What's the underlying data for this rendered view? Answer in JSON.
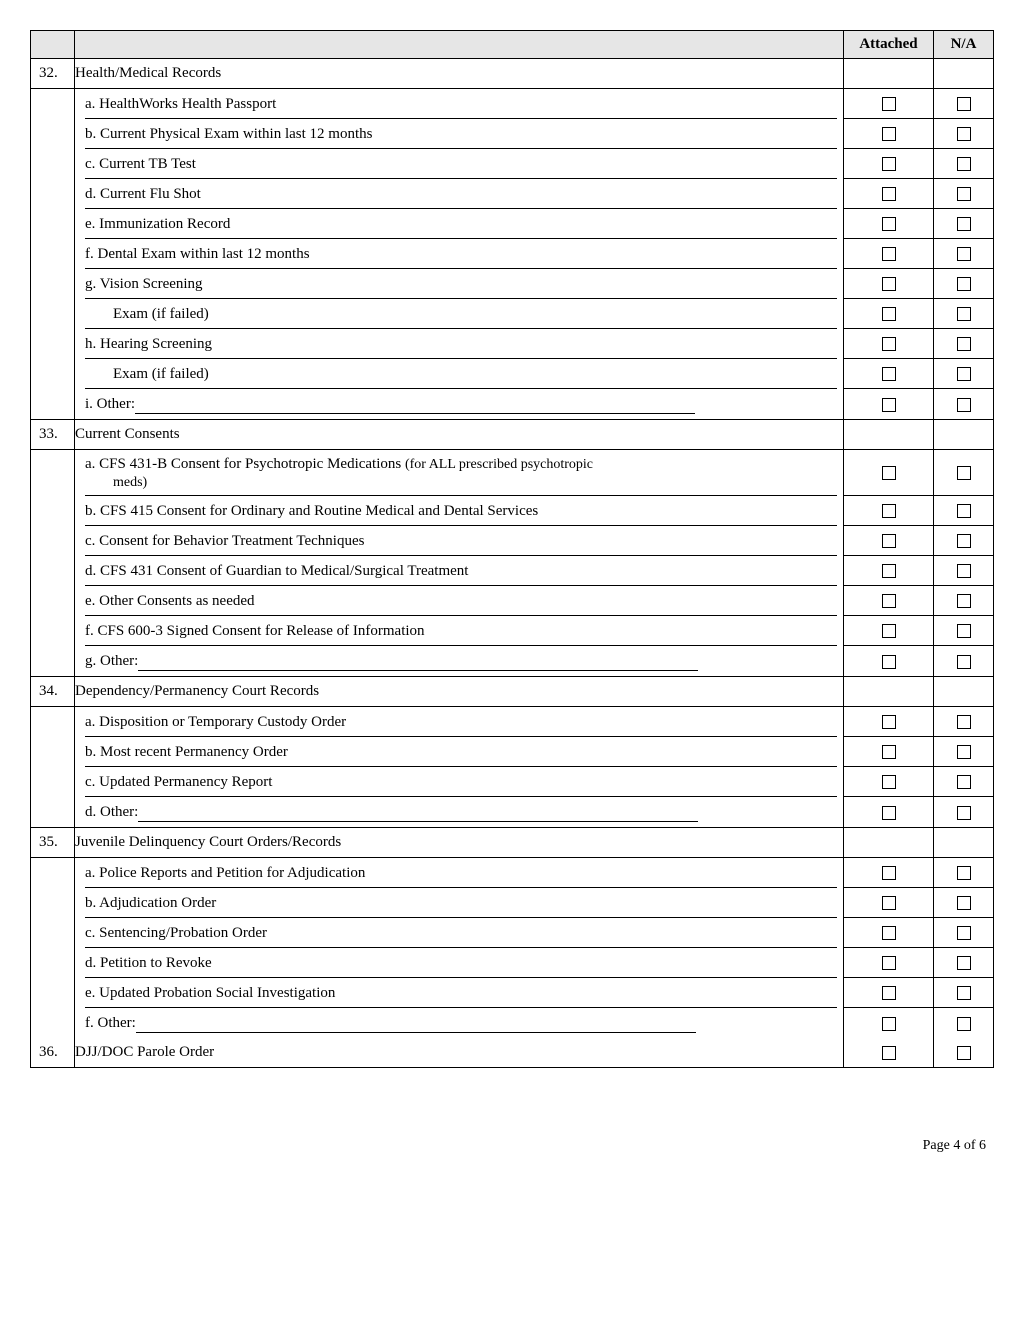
{
  "header": {
    "attached": "Attached",
    "na": "N/A"
  },
  "footer": "Page 4 of 6",
  "sections": [
    {
      "num": "32.",
      "title": "Health/Medical Records",
      "items": [
        {
          "label": "a. HealthWorks Health Passport",
          "u": "partial"
        },
        {
          "label": "b. Current Physical Exam within last 12 months",
          "u": "partial"
        },
        {
          "label": "c. Current TB Test",
          "u": "partial"
        },
        {
          "label": "d. Current Flu Shot",
          "u": "partial"
        },
        {
          "label": "e. Immunization Record",
          "u": "partial"
        },
        {
          "label": "f. Dental Exam within last 12 months",
          "u": "partial"
        },
        {
          "label": "g. Vision Screening",
          "u": "partial"
        },
        {
          "label": "Exam (if failed)",
          "u": "partial",
          "indent": true
        },
        {
          "label": "h. Hearing Screening",
          "u": "partial"
        },
        {
          "label": "Exam (if failed)",
          "u": "partial",
          "indent": true
        },
        {
          "label": "i. Other:",
          "other": true
        }
      ]
    },
    {
      "num": "33.",
      "title": "Current Consents",
      "items": [
        {
          "label": "a. CFS 431-B Consent for Psychotropic Medications  ",
          "tail": "(for ALL prescribed psychotropic",
          "hang": "meds)",
          "tall": true
        },
        {
          "label": "b. CFS 415 Consent for Ordinary and Routine Medical and Dental Services"
        },
        {
          "label": "c. Consent for Behavior Treatment Techniques"
        },
        {
          "label": "d. CFS 431 Consent of Guardian to Medical/Surgical Treatment"
        },
        {
          "label": "e. Other Consents as needed"
        },
        {
          "label": "f. CFS 600-3 Signed Consent for Release of Information"
        },
        {
          "label": "g. Other:",
          "other": true
        }
      ]
    },
    {
      "num": "34.",
      "title": "Dependency/Permanency Court Records",
      "items": [
        {
          "label": "a. Disposition or Temporary Custody Order",
          "u": "partial"
        },
        {
          "label": "b. Most recent Permanency Order"
        },
        {
          "label": "c. Updated Permanency Report"
        },
        {
          "label": "d. Other:",
          "other": true
        }
      ]
    },
    {
      "num": "35.",
      "title": "Juvenile Delinquency Court Orders/Records",
      "items": [
        {
          "label": "a. Police Reports and Petition for Adjudication"
        },
        {
          "label": "b. Adjudication Order"
        },
        {
          "label": "c. Sentencing/Probation Order"
        },
        {
          "label": "d. Petition to Revoke"
        },
        {
          "label": "e. Updated Probation Social Investigation"
        },
        {
          "label": "f. Other:",
          "other": true
        }
      ]
    }
  ],
  "single": {
    "num": "36.",
    "title": "DJJ/DOC Parole Order"
  }
}
